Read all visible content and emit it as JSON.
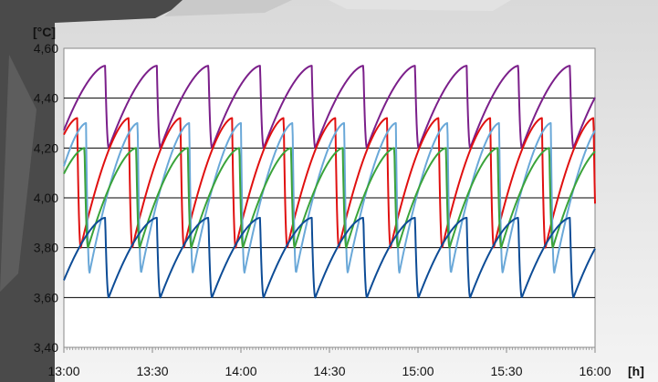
{
  "chart_data": {
    "type": "line",
    "title": "",
    "ylabel": "[°C]",
    "xlabel": "[h]",
    "ylim": [
      3.4,
      4.6
    ],
    "xlim": [
      "13:00",
      "16:00"
    ],
    "y_ticks": [
      "4,60",
      "4,40",
      "4,20",
      "4,00",
      "3,80",
      "3,60",
      "3,40"
    ],
    "x_ticks": [
      "13:00",
      "13:30",
      "14:00",
      "14:30",
      "15:00",
      "15:30",
      "16:00"
    ],
    "grid": true,
    "legend": "none",
    "sawtooth_period_minutes": 17.5,
    "series": [
      {
        "color": "#7b1f8a",
        "min": 4.2,
        "max": 4.53,
        "first_peak": "13:14",
        "period_minutes": 17.5
      },
      {
        "color": "#e01010",
        "min": 3.8,
        "max": 4.32,
        "first_peak": "13:22",
        "period_minutes": 17.5
      },
      {
        "color": "#6aa8d8",
        "min": 3.7,
        "max": 4.3,
        "first_peak": "13:25",
        "period_minutes": 17.5
      },
      {
        "color": "#3aa33a",
        "min": 3.8,
        "max": 4.2,
        "first_peak": "13:07",
        "period_minutes": 17.5
      },
      {
        "color": "#0d4c96",
        "min": 3.6,
        "max": 3.92,
        "first_peak": "13:14",
        "period_minutes": 17.5
      }
    ]
  },
  "colors": {
    "grid": "#000000",
    "axis": "#888888",
    "background": "#ffffff"
  }
}
